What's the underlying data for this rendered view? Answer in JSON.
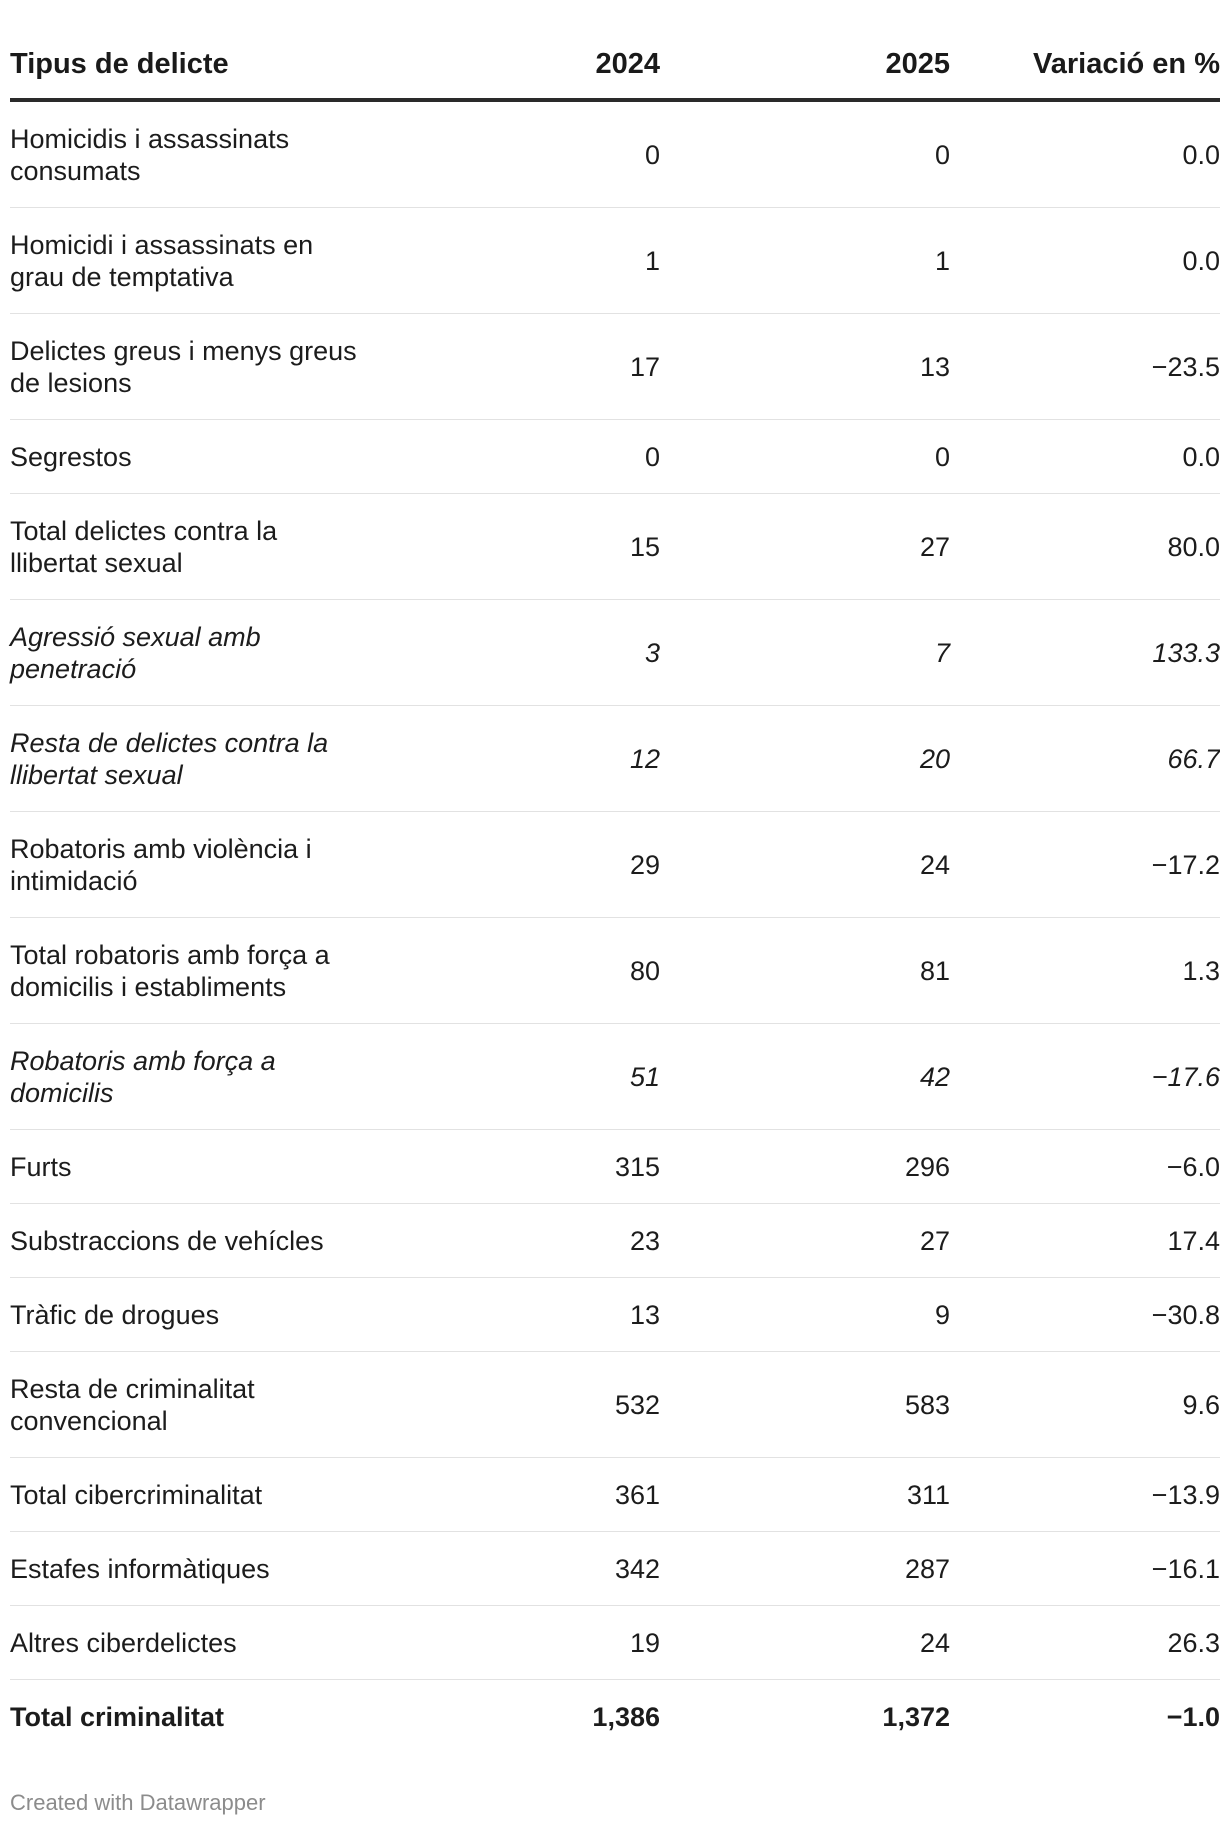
{
  "chart_data": {
    "type": "table",
    "columns": [
      "Tipus de delicte",
      "2024",
      "2025",
      "Variació en %"
    ],
    "rows": [
      {
        "label": "Homicidis i assassinats consumats",
        "v2024": "0",
        "v2025": "0",
        "var": "0.0",
        "style": "normal",
        "lines": 2
      },
      {
        "label": "Homicidi i assassinats en grau de temptativa",
        "v2024": "1",
        "v2025": "1",
        "var": "0.0",
        "style": "normal",
        "lines": 2
      },
      {
        "label": "Delictes greus i menys greus de lesions",
        "v2024": "17",
        "v2025": "13",
        "var": "−23.5",
        "style": "normal",
        "lines": 2
      },
      {
        "label": "Segrestos",
        "v2024": "0",
        "v2025": "0",
        "var": "0.0",
        "style": "normal",
        "lines": 1
      },
      {
        "label": "Total delictes contra la llibertat sexual",
        "v2024": "15",
        "v2025": "27",
        "var": "80.0",
        "style": "normal",
        "lines": 2
      },
      {
        "label": "Agressió sexual amb penetració",
        "v2024": "3",
        "v2025": "7",
        "var": "133.3",
        "style": "italic",
        "lines": 2
      },
      {
        "label": "Resta de delictes contra la llibertat sexual",
        "v2024": "12",
        "v2025": "20",
        "var": "66.7",
        "style": "italic",
        "lines": 2
      },
      {
        "label": "Robatoris amb violència i intimidació",
        "v2024": "29",
        "v2025": "24",
        "var": "−17.2",
        "style": "normal",
        "lines": 2
      },
      {
        "label": "Total robatoris amb força a domicilis i establiments",
        "v2024": "80",
        "v2025": "81",
        "var": "1.3",
        "style": "normal",
        "lines": 2
      },
      {
        "label": "Robatoris amb força a domicilis",
        "v2024": "51",
        "v2025": "42",
        "var": "−17.6",
        "style": "italic",
        "lines": 2
      },
      {
        "label": "Furts",
        "v2024": "315",
        "v2025": "296",
        "var": "−6.0",
        "style": "normal",
        "lines": 1
      },
      {
        "label": "Substraccions de vehícles",
        "v2024": "23",
        "v2025": "27",
        "var": "17.4",
        "style": "normal",
        "lines": 1
      },
      {
        "label": "Tràfic de drogues",
        "v2024": "13",
        "v2025": "9",
        "var": "−30.8",
        "style": "normal",
        "lines": 1
      },
      {
        "label": "Resta de criminalitat convencional",
        "v2024": "532",
        "v2025": "583",
        "var": "9.6",
        "style": "normal",
        "lines": 2
      },
      {
        "label": "Total cibercriminalitat",
        "v2024": "361",
        "v2025": "311",
        "var": "−13.9",
        "style": "normal",
        "lines": 1
      },
      {
        "label": "Estafes informàtiques",
        "v2024": "342",
        "v2025": "287",
        "var": "−16.1",
        "style": "normal",
        "lines": 1
      },
      {
        "label": "Altres ciberdelictes",
        "v2024": "19",
        "v2025": "24",
        "var": "26.3",
        "style": "normal",
        "lines": 1
      },
      {
        "label": "Total criminalitat",
        "v2024": "1,386",
        "v2025": "1,372",
        "var": "−1.0",
        "style": "bold",
        "lines": 1
      }
    ]
  },
  "footer": {
    "credit": "Created with Datawrapper"
  }
}
